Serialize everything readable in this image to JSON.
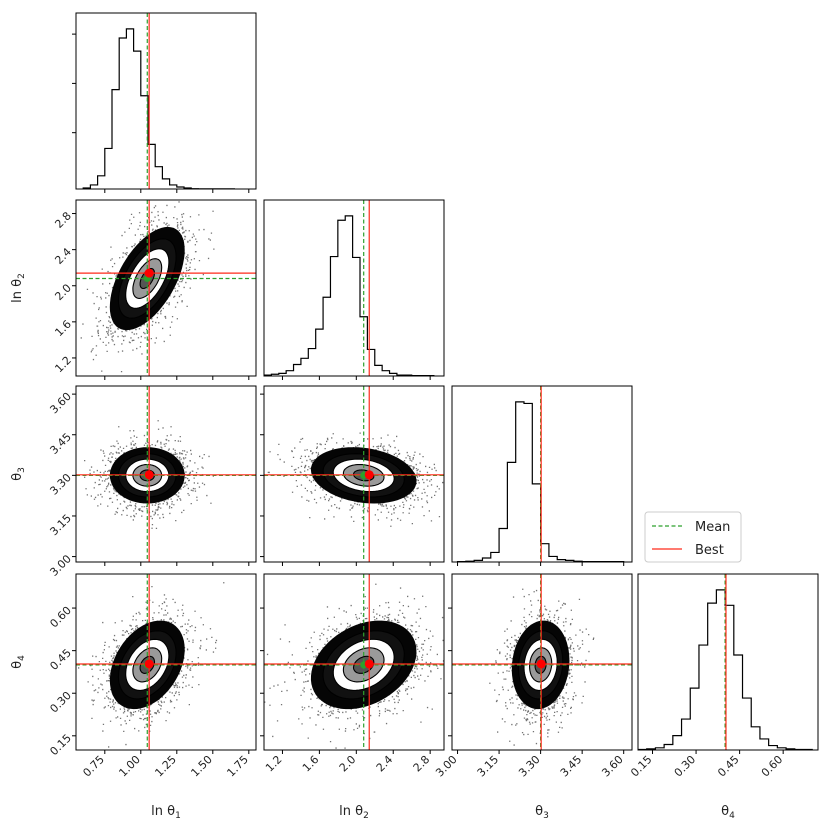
{
  "chart_data": {
    "type": "scatter",
    "subtype": "corner-plot",
    "parameters": [
      {
        "key": "p1",
        "label": "ln θ",
        "sub": "1",
        "range": [
          0.55,
          1.8
        ],
        "ticks": [
          0.75,
          1.0,
          1.25,
          1.5,
          1.75
        ],
        "mean": 1.045,
        "best": 1.058,
        "sd": 0.1
      },
      {
        "key": "p2",
        "label": "ln θ",
        "sub": "2",
        "range": [
          1.0,
          2.95
        ],
        "ticks": [
          1.2,
          1.6,
          2.0,
          2.4,
          2.8
        ],
        "mean": 2.08,
        "best": 2.14,
        "sd": 0.22
      },
      {
        "key": "p3",
        "label": "θ",
        "sub": "3",
        "range": [
          2.98,
          3.63
        ],
        "ticks": [
          3.0,
          3.15,
          3.3,
          3.45,
          3.6
        ],
        "mean": 3.3,
        "best": 3.302,
        "sd": 0.04
      },
      {
        "key": "p4",
        "label": "θ",
        "sub": "4",
        "range": [
          0.1,
          0.72
        ],
        "ticks": [
          0.15,
          0.3,
          0.45,
          0.6
        ],
        "mean": 0.4,
        "best": 0.403,
        "sd": 0.06
      }
    ],
    "tick_labels": {
      "p1": [
        "0.75",
        "1.00",
        "1.25",
        "1.50",
        "1.75"
      ],
      "p2": [
        "1.2",
        "1.6",
        "2.0",
        "2.4",
        "2.8"
      ],
      "p3": [
        "3.00",
        "3.15",
        "3.30",
        "3.45",
        "3.60"
      ],
      "p4": [
        "0.15",
        "0.30",
        "0.45",
        "0.60"
      ]
    },
    "histograms": {
      "p1": {
        "bin_start": 0.6,
        "bin_width": 0.05,
        "counts": [
          1,
          4,
          13,
          40,
          98,
          149,
          158,
          136,
          92,
          44,
          22,
          10,
          4,
          2,
          1,
          0.3,
          0.2,
          0.1,
          0.1,
          0.1,
          0.1
        ]
      },
      "p2": {
        "bin_start": 1.0,
        "bin_width": 0.08,
        "counts": [
          1,
          2,
          3,
          6,
          13,
          20,
          31,
          53,
          89,
          135,
          176,
          181,
          134,
          67,
          30,
          12,
          6,
          3,
          1,
          1,
          0.5,
          0.5,
          0.5
        ]
      },
      "p3": {
        "bin_start": 3.0,
        "bin_width": 0.03,
        "counts": [
          0.5,
          1,
          2,
          5,
          12,
          42,
          125,
          201,
          199,
          98,
          23,
          7,
          3,
          2,
          1,
          0.5,
          0.5,
          0.5,
          0.5,
          0.5
        ]
      },
      "p4": {
        "bin_start": 0.1,
        "bin_width": 0.03,
        "counts": [
          0.5,
          1,
          2,
          5,
          13,
          28,
          56,
          95,
          133,
          145,
          131,
          86,
          47,
          21,
          10,
          4,
          2,
          1,
          0.5,
          0.5
        ]
      }
    },
    "pair_correlation": {
      "p2_p1": 0.55,
      "p3_p1": 0.0,
      "p3_p2": -0.2,
      "p4_p1": 0.35,
      "p4_p2": 0.3,
      "p4_p3": 0.1
    },
    "contour_levels_sigma": [
      0.5,
      1.0,
      1.5,
      2.0
    ],
    "mean_line_color": "#2ca02c",
    "best_line_color": "#ff2a1a",
    "best_marker_color": "#ff0000",
    "legend": {
      "placement": "right of θ3 histogram",
      "entries": [
        {
          "label": "Mean",
          "style": "dashed",
          "color": "#2ca02c"
        },
        {
          "label": "Best",
          "style": "solid",
          "color": "#ff2a1a"
        }
      ]
    }
  }
}
